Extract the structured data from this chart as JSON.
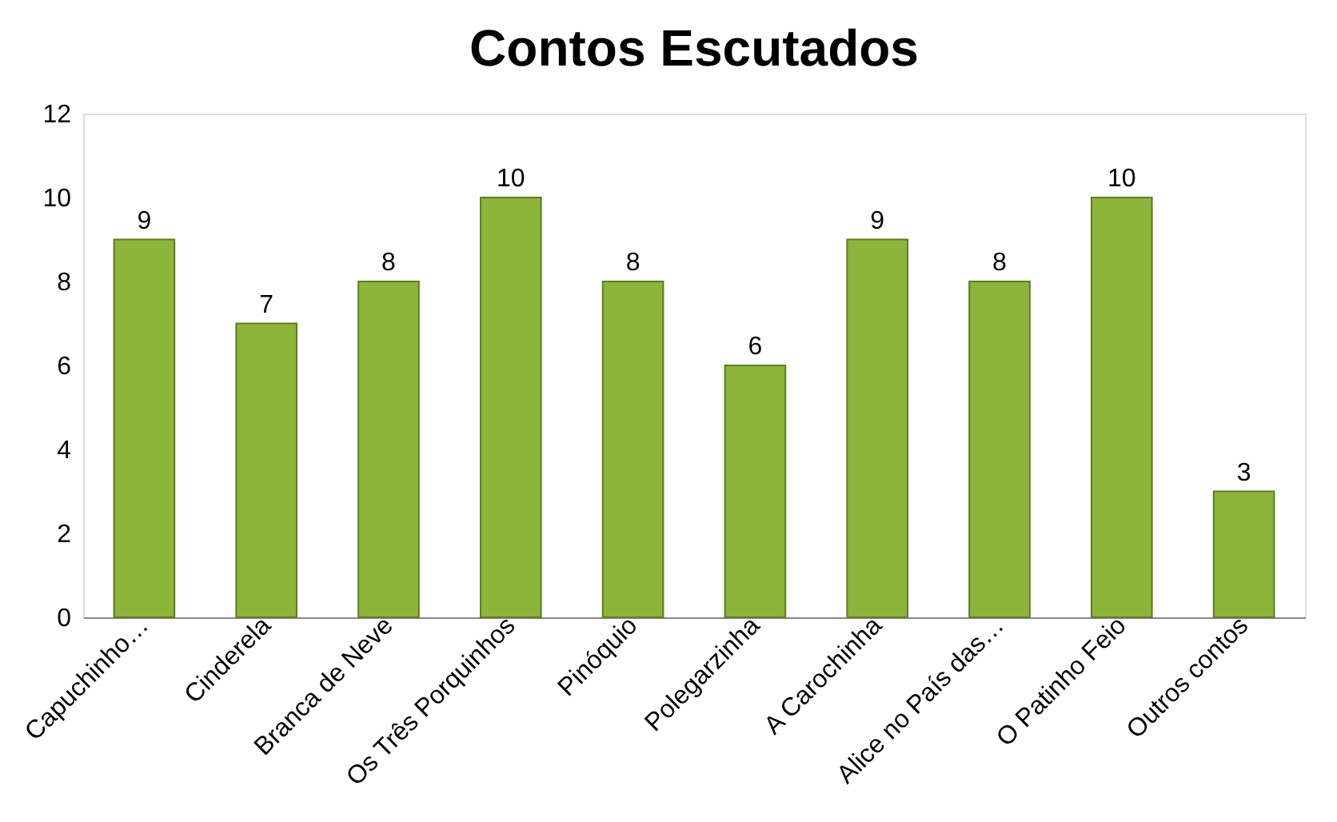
{
  "chart_data": {
    "type": "bar",
    "title": "Contos Escutados",
    "categories": [
      "Capuchinho…",
      "Cinderela",
      "Branca de Neve",
      "Os Três Porquinhos",
      "Pinóquio",
      "Polegarzinha",
      "A Carochinha",
      "Alice no País das…",
      "O Patinho Feio",
      "Outros contos"
    ],
    "values": [
      9,
      7,
      8,
      10,
      8,
      6,
      9,
      8,
      10,
      3
    ],
    "color": "#8db53a",
    "ylim": [
      0,
      12
    ],
    "yticks": [
      0,
      2,
      4,
      6,
      8,
      10,
      12
    ],
    "grid": false,
    "data_labels": true
  }
}
